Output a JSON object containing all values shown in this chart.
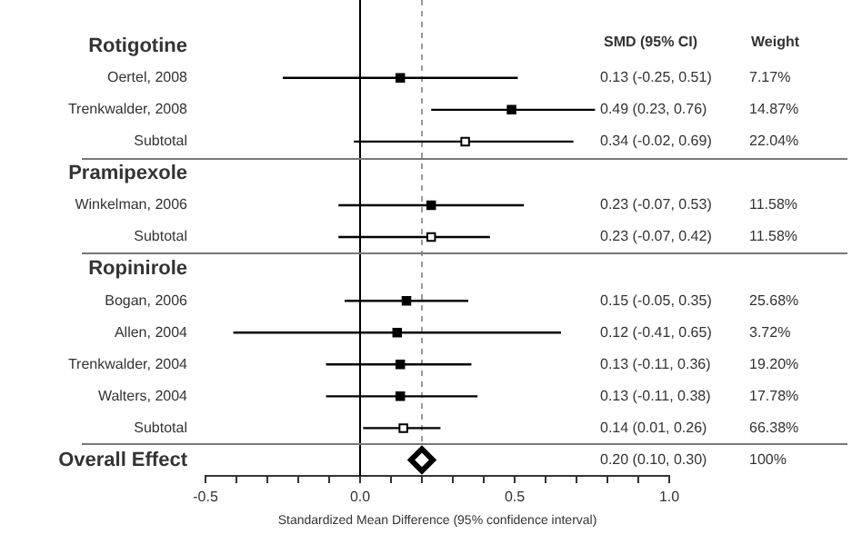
{
  "chart_data": {
    "type": "scatter",
    "orientation": "horizontal",
    "xlabel": "Standardized Mean Difference (95% confidence interval)",
    "categories": [
      "Rotigotine",
      "Oertel, 2008",
      "Trenkwalder, 2008",
      "Subtotal",
      "Pramipexole",
      "Winkelman, 2006",
      "Subtotal",
      "Ropinirole",
      "Bogan, 2006",
      "Allen, 2004",
      "Trenkwalder, 2004",
      "Walters, 2004",
      "Subtotal",
      "Overall Effect"
    ],
    "xlim": [
      -0.5,
      1.0
    ],
    "xticks": [
      {
        "value": -0.5,
        "label": "-0.5"
      },
      {
        "value": -0.4,
        "label": null
      },
      {
        "value": -0.3,
        "label": null
      },
      {
        "value": -0.2,
        "label": null
      },
      {
        "value": -0.1,
        "label": null
      },
      {
        "value": 0,
        "label": "0.0"
      },
      {
        "value": 0.1,
        "label": null
      },
      {
        "value": 0.2,
        "label": null
      },
      {
        "value": 0.3,
        "label": null
      },
      {
        "value": 0.4,
        "label": null
      },
      {
        "value": 0.5,
        "label": "0.5"
      },
      {
        "value": 0.6,
        "label": null
      },
      {
        "value": 0.7,
        "label": null
      },
      {
        "value": 0.8,
        "label": null
      },
      {
        "value": 0.9,
        "label": null
      },
      {
        "value": 1.0,
        "label": "1.0"
      }
    ],
    "grid": false,
    "legend": false,
    "series": [
      {
        "color": "#000000",
        "marker": "square",
        "values": [
          null,
          0.13,
          0.49,
          null,
          null,
          0.23,
          null,
          null,
          0.15,
          0.12,
          0.13,
          0.13,
          null,
          null
        ],
        "errors": [
          null,
          [
            -0.25,
            0.51
          ],
          [
            0.23,
            0.76
          ],
          null,
          null,
          [
            -0.07,
            0.53
          ],
          null,
          null,
          [
            -0.05,
            0.35
          ],
          [
            -0.41,
            0.65
          ],
          [
            -0.11,
            0.36
          ],
          [
            -0.11,
            0.38
          ],
          null,
          null
        ]
      },
      {
        "color": "#000000",
        "marker": "square",
        "values": [
          null,
          null,
          null,
          0.34,
          null,
          null,
          0.23,
          null,
          null,
          null,
          null,
          null,
          0.14,
          null
        ],
        "errors": [
          null,
          null,
          null,
          [
            -0.02,
            0.69
          ],
          null,
          null,
          [
            -0.07,
            0.42
          ],
          null,
          null,
          null,
          null,
          null,
          [
            0.01,
            0.26
          ],
          null
        ]
      },
      {
        "color": "#000000",
        "marker": "diamond",
        "values": [
          null,
          null,
          null,
          null,
          null,
          null,
          null,
          null,
          null,
          null,
          null,
          null,
          null,
          0.2
        ]
      }
    ],
    "ref_lines": [
      {
        "axis": "x",
        "value": 0,
        "line_style": "solid",
        "color": "#000000"
      },
      {
        "axis": "x",
        "value": 0.2,
        "line_style": "dashed",
        "color": "#999999"
      }
    ],
    "annotations": [
      "SMD (95% CI)",
      "Weight",
      "0.13 (-0.25, 0.51)",
      "0.49 (0.23, 0.76)",
      "0.34 (-0.02, 0.69)",
      "0.23 (-0.07, 0.53)",
      "0.23 (-0.07, 0.42)",
      "0.15 (-0.05, 0.35)",
      "0.12 (-0.41, 0.65)",
      "0.13 (-0.11, 0.36)",
      "0.13 (-0.11, 0.38)",
      "0.14 (0.01, 0.26)",
      "0.20 (0.10, 0.30)",
      "7.17%",
      "14.87%",
      "22.04%",
      "11.58%",
      "11.58%",
      "25.68%",
      "3.72%",
      "19.20%",
      "17.78%",
      "66.38%",
      "100%"
    ]
  }
}
